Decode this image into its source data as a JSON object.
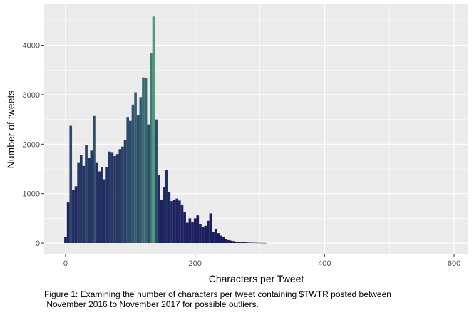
{
  "chart_data": {
    "type": "bar",
    "title": "",
    "xlabel": "Characters per Tweet",
    "ylabel": "Number of tweets",
    "xlim": [
      -33,
      622
    ],
    "ylim": [
      -230,
      4830
    ],
    "x_ticks": [
      0,
      200,
      400,
      600
    ],
    "y_ticks": [
      0,
      1000,
      2000,
      3000,
      4000
    ],
    "grid": true,
    "legend": "none",
    "bin_width": 4,
    "fill_scale": {
      "low": "#1a1a5e",
      "high": "#4d9a7a"
    },
    "x": [
      0,
      4,
      8,
      12,
      16,
      20,
      24,
      28,
      32,
      36,
      40,
      44,
      48,
      52,
      56,
      60,
      64,
      68,
      72,
      76,
      80,
      84,
      88,
      92,
      96,
      100,
      104,
      108,
      112,
      116,
      120,
      124,
      128,
      132,
      136,
      140,
      144,
      148,
      152,
      156,
      160,
      164,
      168,
      172,
      176,
      180,
      184,
      188,
      192,
      196,
      200,
      204,
      208,
      212,
      216,
      220,
      224,
      228,
      232,
      236,
      240,
      244,
      248,
      252,
      256,
      260,
      264,
      268,
      272,
      276,
      280,
      284,
      288,
      292,
      296,
      300,
      304,
      308
    ],
    "values": [
      120,
      820,
      2370,
      1080,
      1150,
      1620,
      1780,
      1560,
      1980,
      1720,
      1870,
      2570,
      1620,
      1450,
      1530,
      1290,
      1540,
      1850,
      1840,
      1760,
      1800,
      1900,
      1950,
      2080,
      2550,
      2470,
      2800,
      3050,
      2580,
      2950,
      3350,
      3340,
      2400,
      3840,
      4580,
      2500,
      1380,
      870,
      1130,
      1480,
      1030,
      850,
      870,
      900,
      860,
      780,
      620,
      410,
      500,
      420,
      500,
      560,
      380,
      320,
      350,
      450,
      600,
      220,
      280,
      200,
      150,
      120,
      80,
      60,
      50,
      40,
      30,
      25,
      20,
      15,
      12,
      10,
      8,
      6,
      5,
      4,
      3,
      2
    ]
  },
  "caption": "Figure 1: Examining the number of characters per tweet containing $TWTR posted between\n November 2016 to November 2017 for possible outliers."
}
